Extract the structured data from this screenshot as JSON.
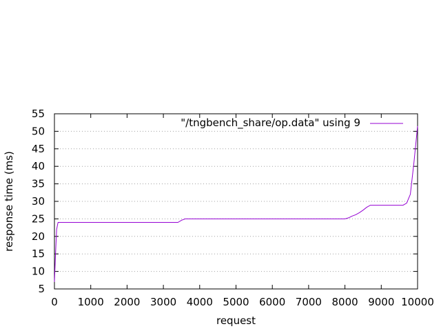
{
  "chart_data": {
    "type": "line",
    "title": "",
    "xlabel": "request",
    "ylabel": "response time (ms)",
    "xlim": [
      0,
      10000
    ],
    "ylim": [
      5,
      55
    ],
    "xticks": [
      0,
      1000,
      2000,
      3000,
      4000,
      5000,
      6000,
      7000,
      8000,
      9000,
      10000
    ],
    "yticks": [
      5,
      10,
      15,
      20,
      25,
      30,
      35,
      40,
      45,
      50,
      55
    ],
    "grid": "horizontal dotted",
    "legend_position": "top-right",
    "series": [
      {
        "name": "\"/tngbench_share/op.data\" using 9",
        "color": "#9400d3",
        "x": [
          0,
          30,
          60,
          90,
          100,
          1000,
          2000,
          3000,
          3400,
          3500,
          3600,
          4000,
          5000,
          6000,
          7000,
          8000,
          8100,
          8200,
          8300,
          8400,
          8500,
          8600,
          8700,
          8800,
          9000,
          9200,
          9400,
          9600,
          9700,
          9800,
          9900,
          10000
        ],
        "y": [
          7,
          15,
          22,
          23.5,
          24,
          24,
          24,
          24,
          24,
          24.6,
          25,
          25,
          25,
          25,
          25,
          25,
          25.3,
          25.8,
          26.2,
          26.8,
          27.5,
          28.3,
          28.9,
          28.9,
          28.9,
          28.9,
          28.9,
          28.9,
          29.5,
          32,
          41,
          51.5
        ]
      }
    ]
  }
}
